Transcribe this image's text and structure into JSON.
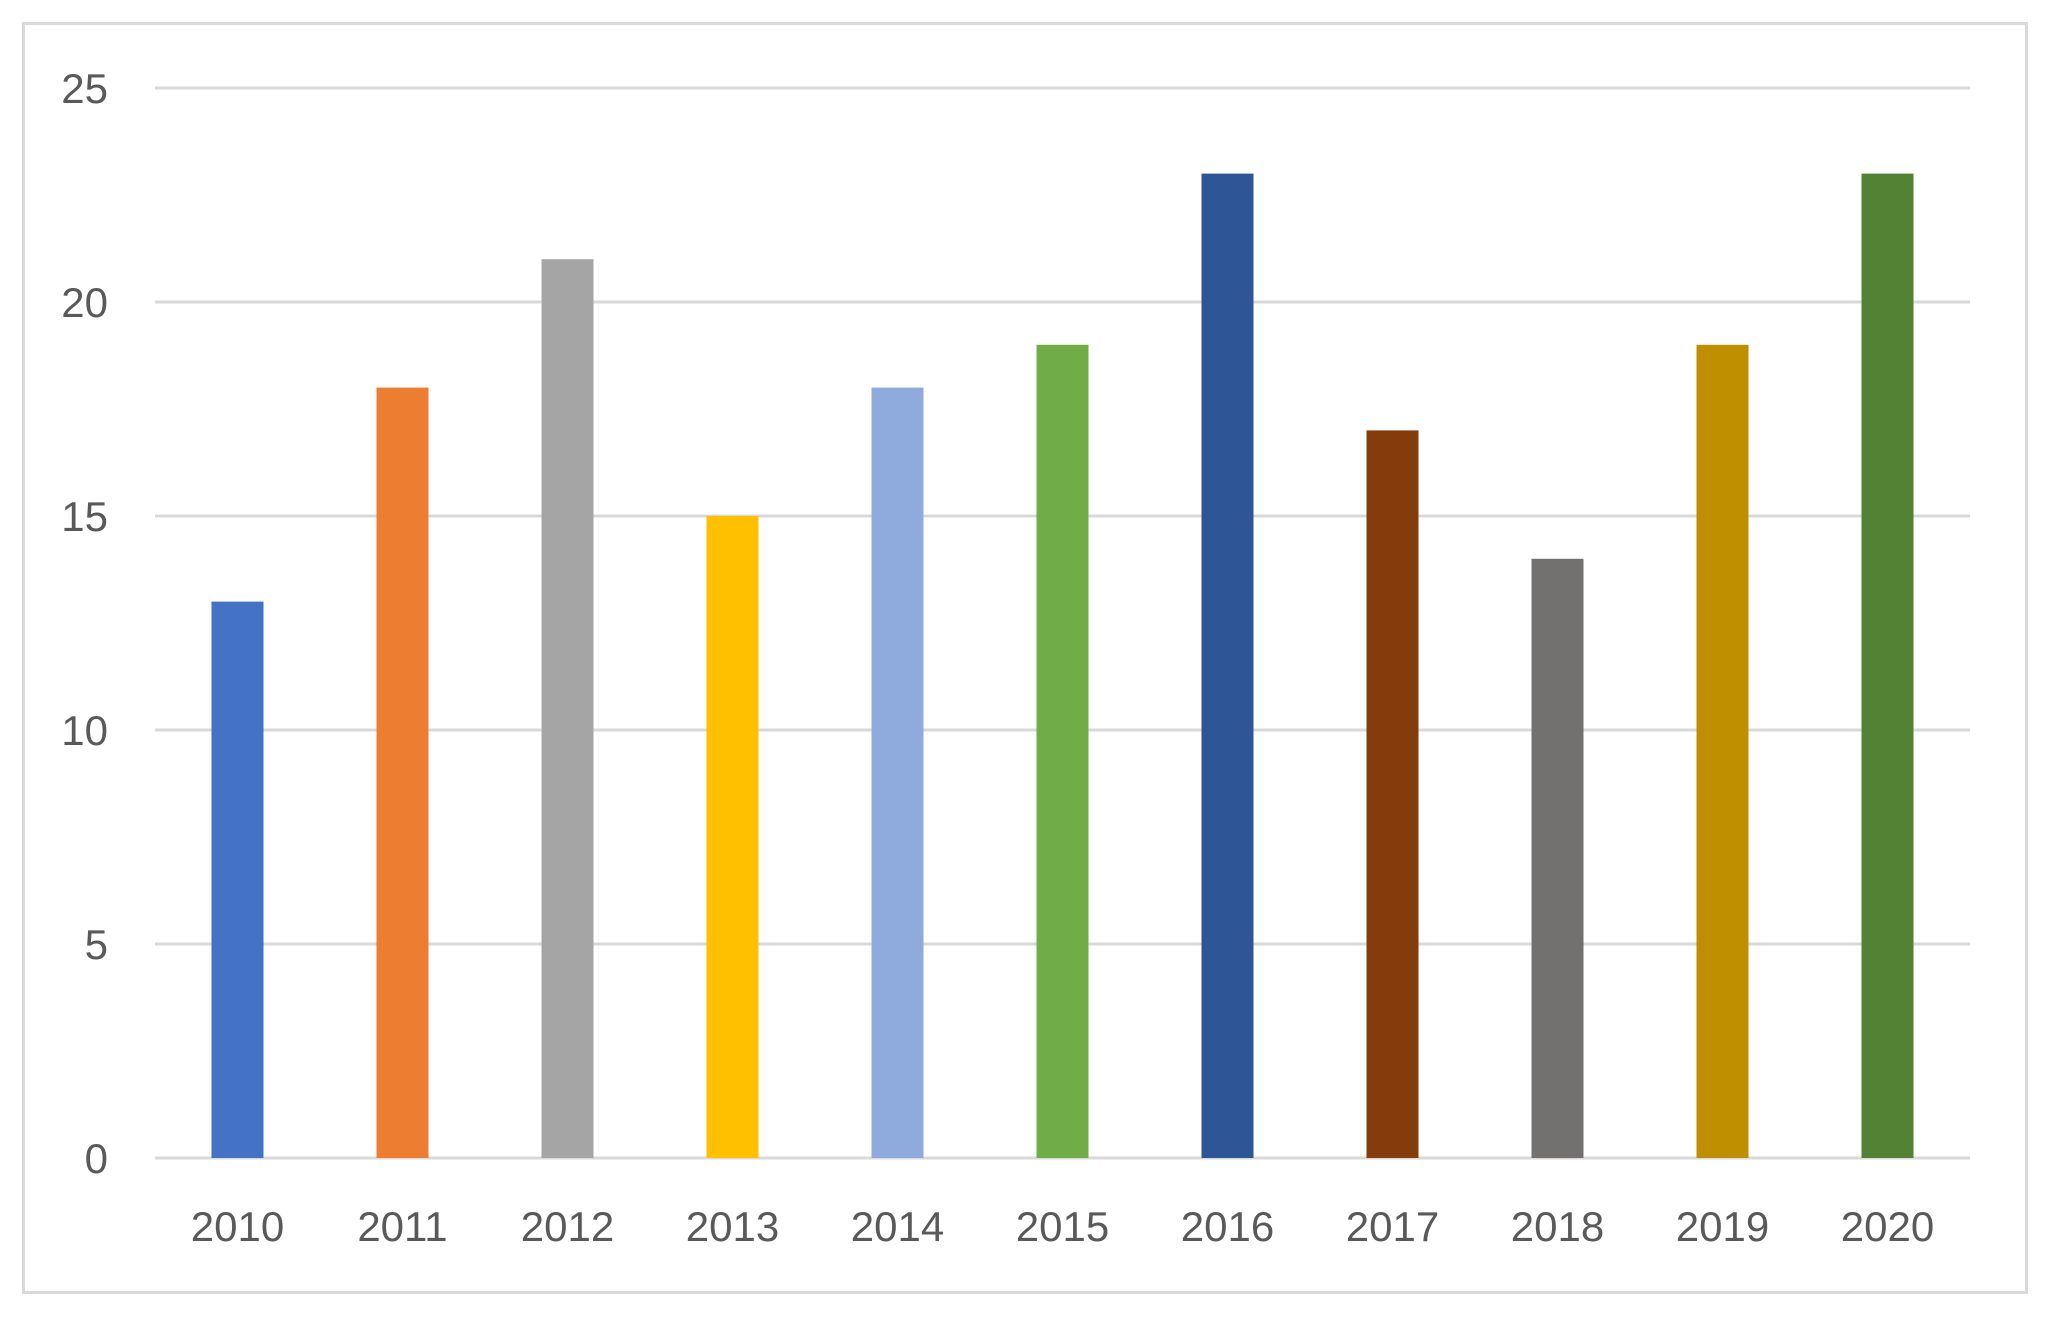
{
  "chart_data": {
    "type": "bar",
    "title": "",
    "xlabel": "",
    "ylabel": "",
    "categories": [
      "2010",
      "2011",
      "2012",
      "2013",
      "2014",
      "2015",
      "2016",
      "2017",
      "2018",
      "2019",
      "2020"
    ],
    "values": [
      13,
      18,
      21,
      15,
      18,
      19,
      23,
      17,
      14,
      19,
      23
    ],
    "ylim": [
      0,
      25
    ],
    "yticks": [
      "0",
      "5",
      "10",
      "15",
      "20",
      "25"
    ],
    "grid": true,
    "legend": "none",
    "colors": [
      "#4472C4",
      "#ED7D31",
      "#A5A5A5",
      "#FFC000",
      "#8FAADC",
      "#70AD47",
      "#2E5596",
      "#843C0C",
      "#737070",
      "#BF8F00",
      "#548235"
    ]
  }
}
